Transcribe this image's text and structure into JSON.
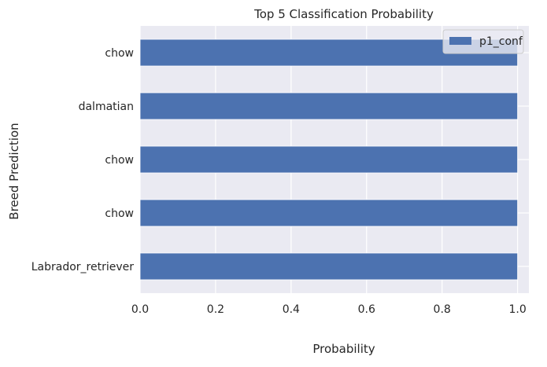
{
  "chart_data": {
    "type": "bar",
    "orientation": "horizontal",
    "title": "Top 5 Classification Probability",
    "xlabel": "Probability",
    "ylabel": "Breed Prediction",
    "categories": [
      "Labrador_retriever",
      "chow",
      "chow",
      "dalmatian",
      "chow"
    ],
    "series": [
      {
        "name": "p1_conf",
        "values": [
          1.0,
          1.0,
          1.0,
          1.0,
          1.0
        ]
      }
    ],
    "xlim": [
      0.0,
      1.03
    ],
    "x_ticks": [
      "0.0",
      "0.2",
      "0.4",
      "0.6",
      "0.8",
      "1.0"
    ],
    "grid": true,
    "legend_position": "top-right",
    "colors": {
      "bar": "#4c72b0",
      "plot_background": "#eaeaf2",
      "grid": "#ffffff",
      "text": "#262626"
    }
  }
}
